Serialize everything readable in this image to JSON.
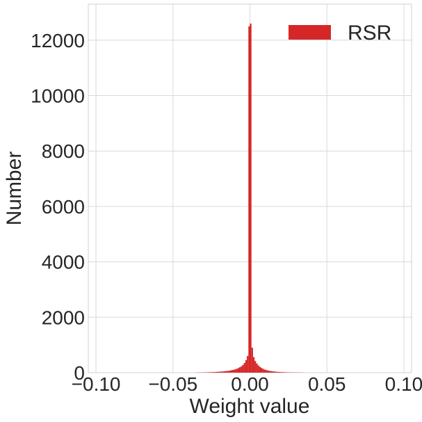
{
  "chart_data": {
    "type": "bar",
    "subtype": "histogram",
    "xlabel": "Weight value",
    "ylabel": "Number",
    "xlim": [
      -0.105,
      0.105
    ],
    "ylim": [
      0,
      13300
    ],
    "xticks": [
      -0.1,
      -0.05,
      0.0,
      0.05,
      0.1
    ],
    "xtick_labels": [
      "−0.10",
      "−0.05",
      "0.00",
      "0.05",
      "0.10"
    ],
    "yticks": [
      0,
      2000,
      4000,
      6000,
      8000,
      10000,
      12000
    ],
    "ytick_labels": [
      "0",
      "2000",
      "4000",
      "6000",
      "8000",
      "10000",
      "12000"
    ],
    "grid": true,
    "legend": {
      "position": "top-right"
    },
    "series": [
      {
        "name": "RSR",
        "color": "#d62728",
        "bin_width": 0.001,
        "bin_centers": [
          -0.0345,
          -0.0335,
          -0.0325,
          -0.0315,
          -0.0305,
          -0.0295,
          -0.0285,
          -0.0275,
          -0.0265,
          -0.0255,
          -0.0245,
          -0.0235,
          -0.0225,
          -0.0215,
          -0.0205,
          -0.0195,
          -0.0185,
          -0.0175,
          -0.0165,
          -0.0155,
          -0.0145,
          -0.0135,
          -0.0125,
          -0.0115,
          -0.0105,
          -0.0095,
          -0.0085,
          -0.0075,
          -0.0065,
          -0.0055,
          -0.0045,
          -0.0035,
          -0.0025,
          -0.0015,
          -0.0005,
          0.0005,
          0.0015,
          0.0025,
          0.0035,
          0.0045,
          0.0055,
          0.0065,
          0.0075,
          0.0085,
          0.0095,
          0.0105,
          0.0115,
          0.0125,
          0.0135,
          0.0145,
          0.0155,
          0.0165,
          0.0175,
          0.0185,
          0.0195,
          0.0205,
          0.0215,
          0.0225,
          0.0235,
          0.0245,
          0.0255,
          0.0265,
          0.0275,
          0.0285,
          0.0295,
          0.0305,
          0.0315,
          0.0325,
          0.0335,
          0.0345
        ],
        "values": [
          5,
          6,
          7,
          8,
          9,
          10,
          12,
          14,
          16,
          18,
          20,
          22,
          25,
          28,
          32,
          36,
          40,
          45,
          50,
          56,
          62,
          70,
          80,
          92,
          105,
          120,
          140,
          165,
          195,
          230,
          280,
          350,
          450,
          600,
          12500,
          12600,
          900,
          560,
          420,
          330,
          260,
          210,
          170,
          140,
          115,
          95,
          80,
          68,
          58,
          50,
          43,
          37,
          32,
          28,
          24,
          21,
          18,
          16,
          14,
          12,
          11,
          10,
          9,
          8,
          7,
          6,
          6,
          5,
          5,
          4
        ]
      }
    ]
  }
}
